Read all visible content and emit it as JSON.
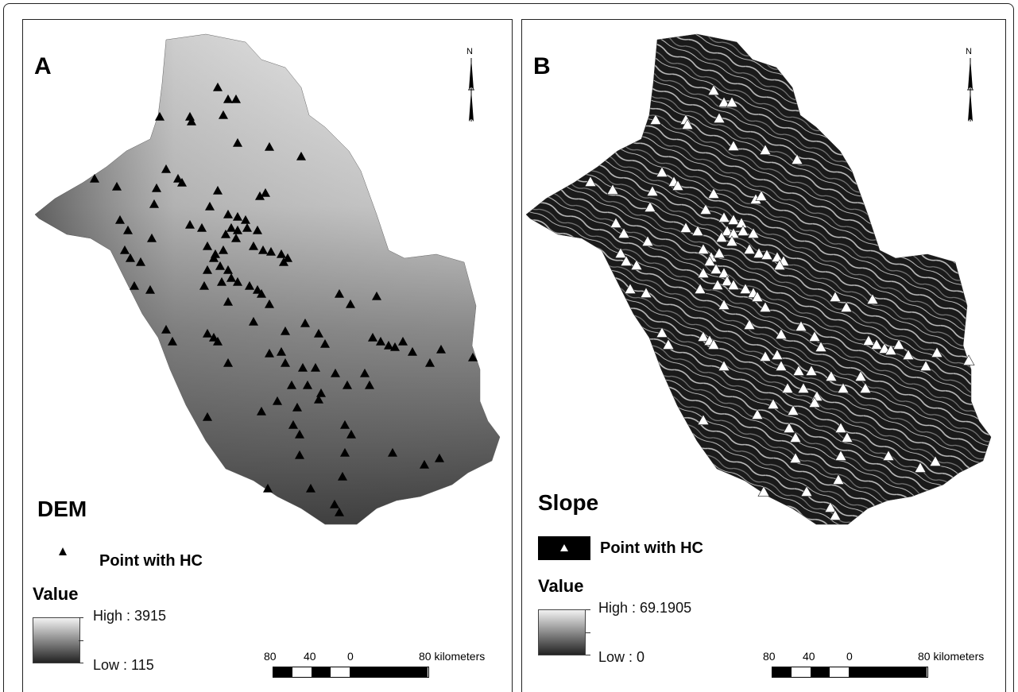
{
  "panels": [
    {
      "id": "A",
      "label": "A",
      "title": "DEM",
      "legend_point": "Point with HC",
      "value_title": "Value",
      "high": "High : 3915",
      "low": "Low : 115",
      "north": "N",
      "scale": {
        "n80": "80",
        "n40": "40",
        "n0": "0",
        "end": "80 kilometers"
      },
      "marker_color": "#000000"
    },
    {
      "id": "B",
      "label": "B",
      "title": "Slope",
      "legend_point": "Point with HC",
      "value_title": "Value",
      "high": "High : 69.1905",
      "low": "Low : 0",
      "north": "N",
      "scale": {
        "n80": "80",
        "n40": "40",
        "n0": "0",
        "end": "80 kilometers"
      },
      "marker_color": "#ffffff"
    }
  ]
}
